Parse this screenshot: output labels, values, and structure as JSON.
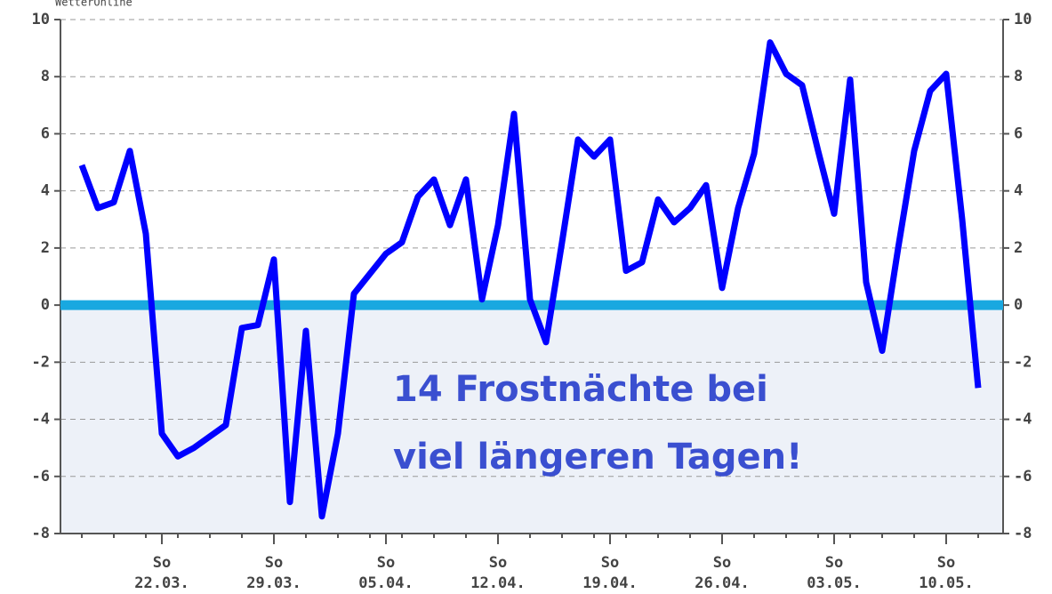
{
  "chart_data": {
    "type": "line",
    "source": "WetterOnline",
    "annotation": [
      "14 Frostnächte bei",
      "viel längeren Tagen!"
    ],
    "weekday": "So",
    "categories": [
      null,
      null,
      null,
      null,
      null,
      "22.03.",
      null,
      null,
      null,
      null,
      null,
      null,
      "29.03.",
      null,
      null,
      null,
      null,
      null,
      null,
      "05.04.",
      null,
      null,
      null,
      null,
      null,
      null,
      "12.04.",
      null,
      null,
      null,
      null,
      null,
      null,
      "19.04.",
      null,
      null,
      null,
      null,
      null,
      null,
      "26.04.",
      null,
      null,
      null,
      null,
      null,
      null,
      "03.05.",
      null,
      null,
      null,
      null,
      null,
      null,
      "10.05.",
      null,
      null
    ],
    "series": [
      {
        "name": null,
        "color": "#0000ff",
        "values": [
          4.9,
          3.4,
          3.6,
          5.4,
          2.5,
          -4.5,
          -5.3,
          -5.0,
          -4.6,
          -4.2,
          -0.8,
          -0.7,
          1.6,
          -6.9,
          -0.9,
          -7.4,
          -4.5,
          0.4,
          1.1,
          1.8,
          2.2,
          3.8,
          4.4,
          2.8,
          4.4,
          0.2,
          2.8,
          6.7,
          0.2,
          -1.3,
          2.2,
          5.8,
          5.2,
          5.8,
          1.2,
          1.5,
          3.7,
          2.9,
          3.4,
          4.2,
          0.6,
          3.4,
          5.3,
          9.2,
          8.1,
          7.7,
          5.4,
          3.2,
          7.9,
          0.8,
          -1.6,
          2.0,
          5.4,
          7.5,
          8.1,
          3.0,
          -2.9
        ]
      }
    ],
    "ylim": [
      -8,
      10
    ],
    "yticks": [
      -8,
      -6,
      -4,
      -2,
      0,
      2,
      4,
      6,
      8,
      10
    ],
    "grid": true,
    "zero_line_color": "#19a8e0",
    "frost_fill": "#edf1f8"
  }
}
